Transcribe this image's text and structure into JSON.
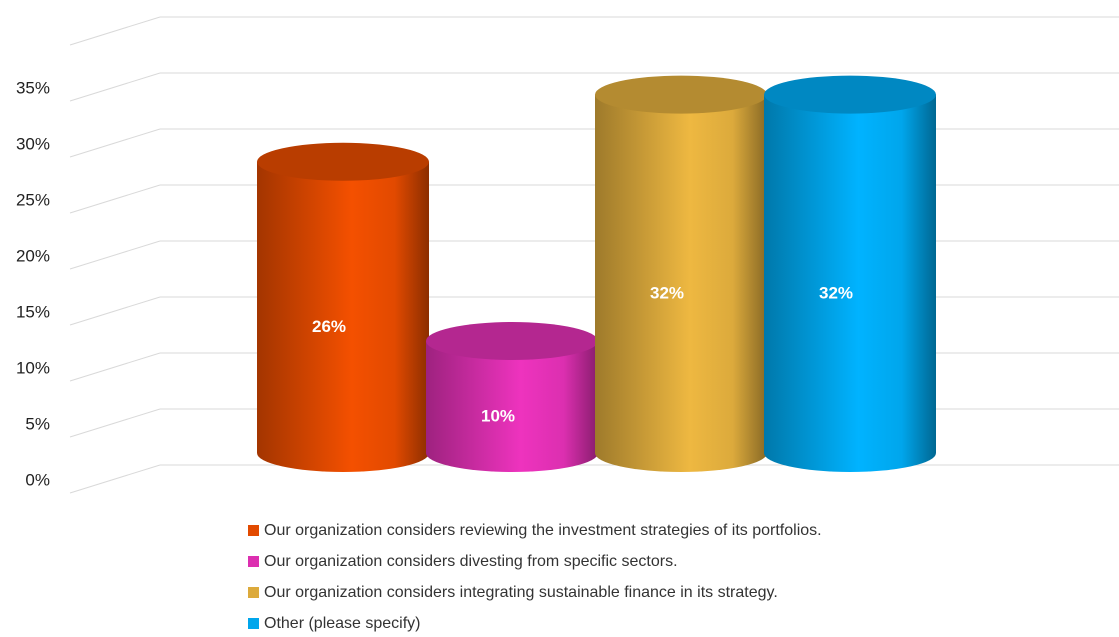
{
  "chart_data": {
    "type": "cylinder-bar",
    "ylim": [
      0,
      40
    ],
    "yticks": [
      {
        "value": 0,
        "label": "0%"
      },
      {
        "value": 5,
        "label": "5%"
      },
      {
        "value": 10,
        "label": "10%"
      },
      {
        "value": 15,
        "label": "15%"
      },
      {
        "value": 20,
        "label": "20%"
      },
      {
        "value": 25,
        "label": "25%"
      },
      {
        "value": 30,
        "label": "30%"
      },
      {
        "value": 35,
        "label": "35%"
      }
    ],
    "grid": true,
    "legend": "bottom",
    "series": [
      {
        "name": "Our organization considers reviewing the investment strategies of its portfolios.",
        "color": "#e24a00",
        "values": [
          26
        ],
        "value_labels": [
          "26%"
        ]
      },
      {
        "name": "Our organization considers divesting from specific sectors.",
        "color": "#dc2fb0",
        "values": [
          10
        ],
        "value_labels": [
          "10%"
        ]
      },
      {
        "name": "Our organization considers integrating sustainable finance in its strategy.",
        "color": "#dcaa3c",
        "values": [
          32
        ],
        "value_labels": [
          "32%"
        ]
      },
      {
        "name": "Other (please specify)",
        "color": "#00a6ec",
        "values": [
          32
        ],
        "value_labels": [
          "32%"
        ]
      }
    ]
  }
}
